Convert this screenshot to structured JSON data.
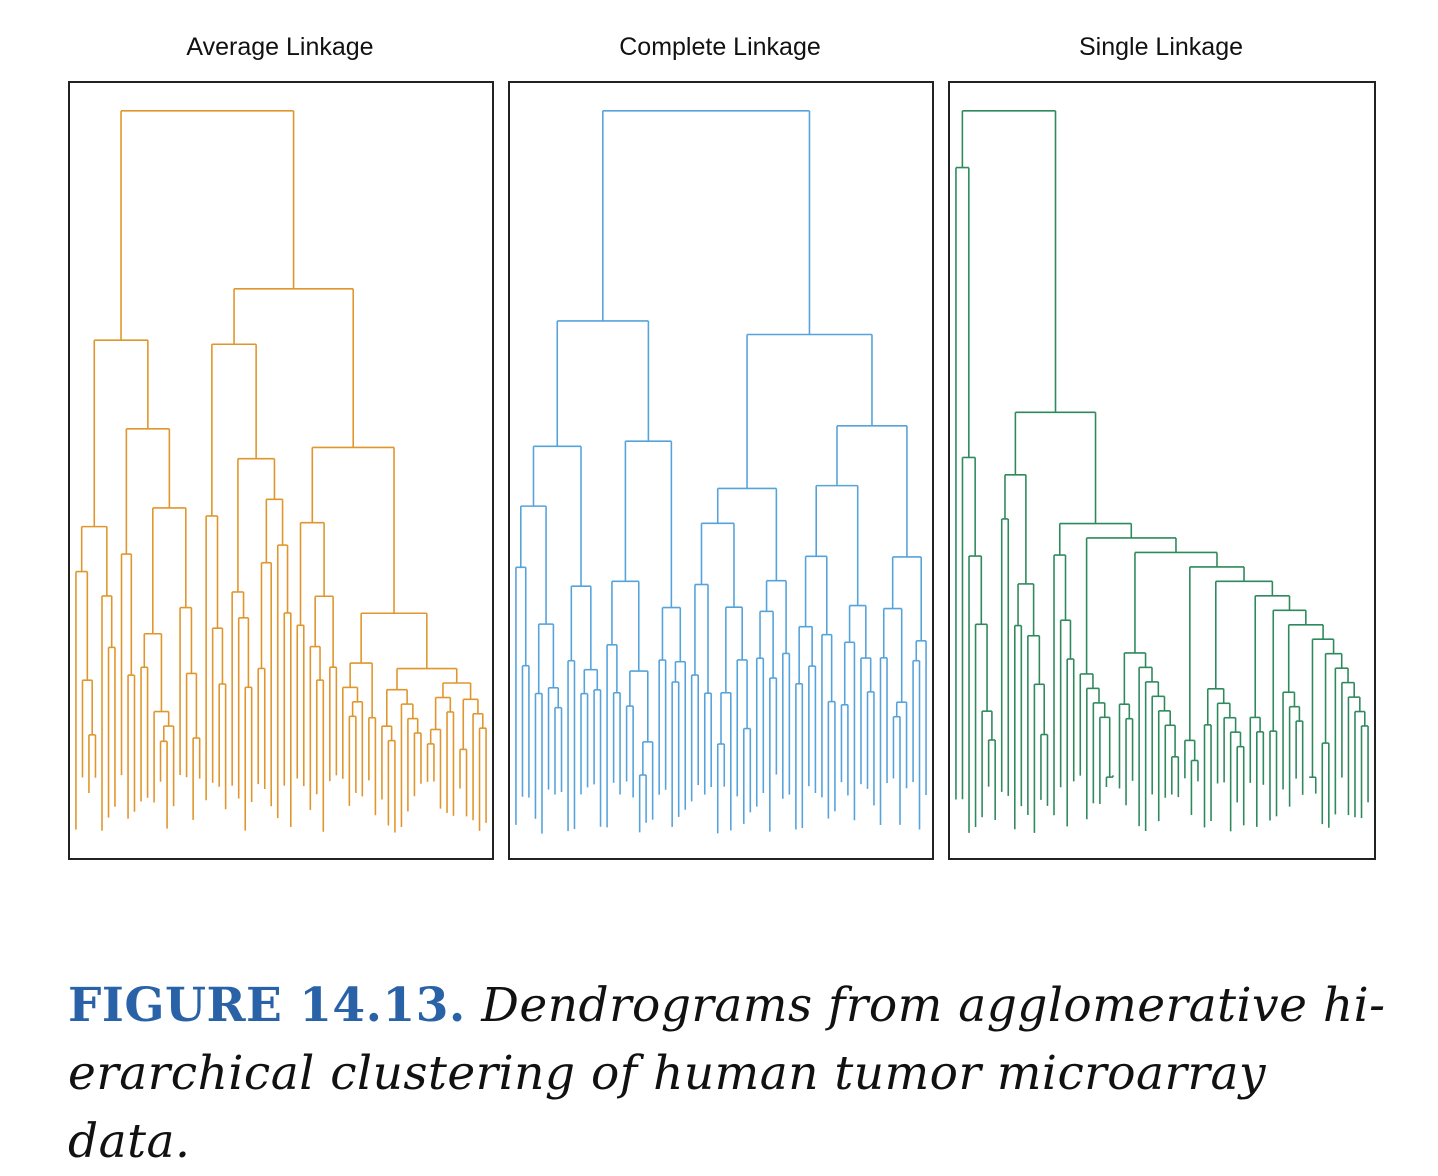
{
  "panels": [
    {
      "title": "Average Linkage",
      "color": "#e0962c",
      "leaves": 64,
      "seed": 11
    },
    {
      "title": "Complete Linkage",
      "color": "#56a3dc",
      "leaves": 64,
      "seed": 23
    },
    {
      "title": "Single Linkage",
      "color": "#2e8a5c",
      "leaves": 64,
      "seed": 37
    }
  ],
  "caption": {
    "label": "FIGURE 14.13.",
    "text": "Dendrograms from agglomerative hi-erarchical clustering of human tumor microarray data."
  }
}
